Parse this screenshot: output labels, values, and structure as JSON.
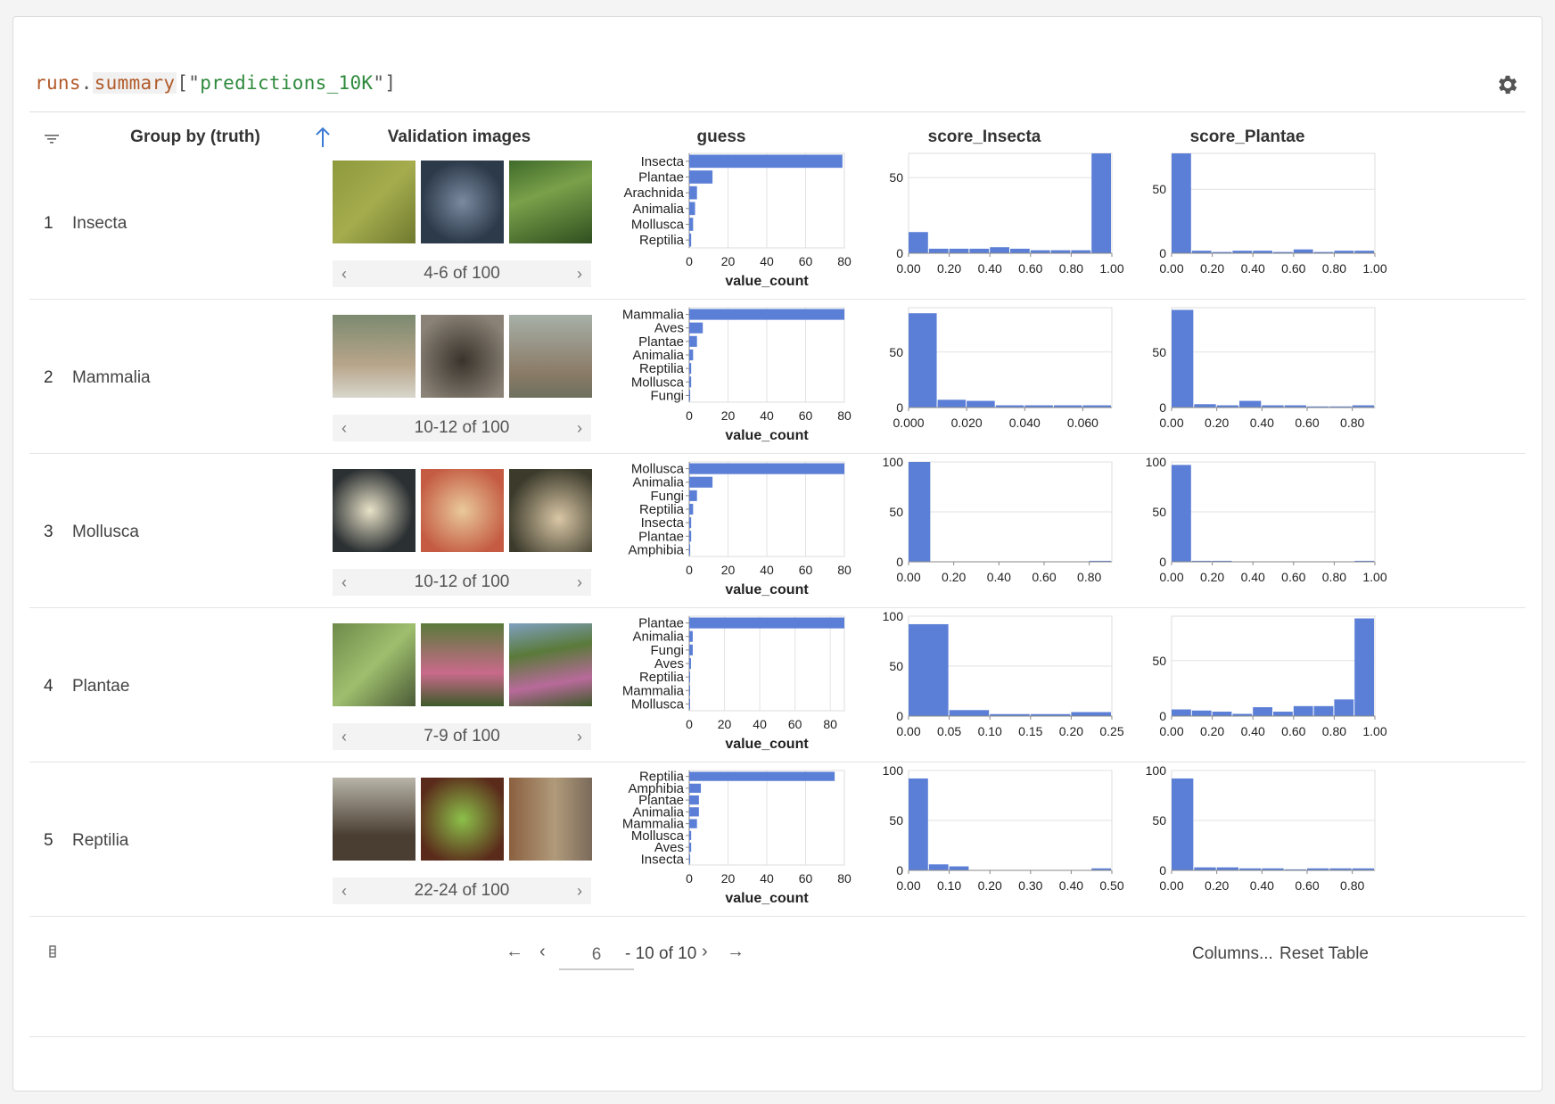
{
  "expression": {
    "obj": "runs",
    "dot": ".",
    "attr": "summary",
    "open": "[\"",
    "key": "predictions_10K",
    "close": "\"]"
  },
  "headers": {
    "group": "Group by (truth)",
    "images": "Validation images",
    "guess": "guess",
    "score_insecta": "score_Insecta",
    "score_plantae": "score_Plantae"
  },
  "rows": [
    {
      "index": "1",
      "name": "Insecta",
      "pager": "4-6 of 100"
    },
    {
      "index": "2",
      "name": "Mammalia",
      "pager": "10-12 of 100"
    },
    {
      "index": "3",
      "name": "Mollusca",
      "pager": "10-12 of 100"
    },
    {
      "index": "4",
      "name": "Plantae",
      "pager": "7-9 of 100"
    },
    {
      "index": "5",
      "name": "Reptilia",
      "pager": "22-24 of 100"
    }
  ],
  "footer": {
    "page_value": "6",
    "page_of": "- 10 of 10",
    "columns": "Columns...",
    "reset": "Reset Table"
  },
  "icons": [
    "gear-icon",
    "filter-icon",
    "sort-ascending-icon",
    "chevron-left-icon",
    "chevron-right-icon",
    "arrow-left-icon",
    "arrow-right-icon",
    "column-toggle-icon"
  ],
  "accent_color": "#5b7fd6",
  "chart_data": [
    {
      "row": "Insecta",
      "column": "guess",
      "type": "bar",
      "orientation": "horizontal",
      "categories": [
        "Insecta",
        "Plantae",
        "Arachnida",
        "Animalia",
        "Mollusca",
        "Reptilia"
      ],
      "values": [
        79,
        12,
        4,
        3,
        2,
        1
      ],
      "xlabel": "value_count",
      "xticks": [
        0,
        20,
        40,
        60,
        80
      ],
      "xlim": [
        0,
        80
      ]
    },
    {
      "row": "Insecta",
      "column": "score_Insecta",
      "type": "histogram",
      "bins": [
        0,
        0.1,
        0.2,
        0.3,
        0.4,
        0.5,
        0.6,
        0.7,
        0.8,
        0.9,
        1.0
      ],
      "values": [
        14,
        3,
        3,
        3,
        4,
        3,
        2,
        2,
        2,
        66
      ],
      "xticks": [
        "0.00",
        "0.20",
        "0.40",
        "0.60",
        "0.80",
        "1.00"
      ],
      "yticks": [
        0,
        50
      ],
      "ylim": [
        0,
        66
      ]
    },
    {
      "row": "Insecta",
      "column": "score_Plantae",
      "type": "histogram",
      "bins": [
        0,
        0.1,
        0.2,
        0.3,
        0.4,
        0.5,
        0.6,
        0.7,
        0.8,
        0.9,
        1.0
      ],
      "values": [
        78,
        2,
        1,
        2,
        2,
        1,
        3,
        1,
        2,
        2
      ],
      "xticks": [
        "0.00",
        "0.20",
        "0.40",
        "0.60",
        "0.80",
        "1.00"
      ],
      "yticks": [
        0,
        50
      ],
      "ylim": [
        0,
        78
      ]
    },
    {
      "row": "Mammalia",
      "column": "guess",
      "type": "bar",
      "orientation": "horizontal",
      "categories": [
        "Mammalia",
        "Aves",
        "Plantae",
        "Animalia",
        "Reptilia",
        "Mollusca",
        "Fungi"
      ],
      "values": [
        80,
        7,
        4,
        2,
        1,
        1,
        0.5
      ],
      "xlabel": "value_count",
      "xticks": [
        0,
        20,
        40,
        60,
        80
      ],
      "xlim": [
        0,
        80
      ]
    },
    {
      "row": "Mammalia",
      "column": "score_Insecta",
      "type": "histogram",
      "bins": [
        0,
        0.01,
        0.02,
        0.03,
        0.04,
        0.05,
        0.06,
        0.07
      ],
      "values": [
        85,
        7,
        6,
        2,
        2,
        2,
        2
      ],
      "xticks": [
        "0.000",
        "0.020",
        "0.040",
        "0.060"
      ],
      "yticks": [
        0,
        50
      ],
      "ylim": [
        0,
        90
      ]
    },
    {
      "row": "Mammalia",
      "column": "score_Plantae",
      "type": "histogram",
      "bins": [
        0,
        0.1,
        0.2,
        0.3,
        0.4,
        0.5,
        0.6,
        0.7,
        0.8,
        0.9
      ],
      "values": [
        88,
        3,
        2,
        6,
        2,
        2,
        1,
        1,
        2
      ],
      "xticks": [
        "0.00",
        "0.20",
        "0.40",
        "0.60",
        "0.80"
      ],
      "yticks": [
        0,
        50
      ],
      "ylim": [
        0,
        90
      ]
    },
    {
      "row": "Mollusca",
      "column": "guess",
      "type": "bar",
      "orientation": "horizontal",
      "categories": [
        "Mollusca",
        "Animalia",
        "Fungi",
        "Reptilia",
        "Insecta",
        "Plantae",
        "Amphibia"
      ],
      "values": [
        80,
        12,
        4,
        2,
        1,
        1,
        0.5
      ],
      "xlabel": "value_count",
      "xticks": [
        0,
        20,
        40,
        60,
        80
      ],
      "xlim": [
        0,
        80
      ]
    },
    {
      "row": "Mollusca",
      "column": "score_Insecta",
      "type": "histogram",
      "bins": [
        0,
        0.1,
        0.2,
        0.3,
        0.4,
        0.5,
        0.6,
        0.7,
        0.8,
        0.9
      ],
      "values": [
        100,
        0,
        0,
        0,
        0,
        0,
        0,
        0,
        1
      ],
      "xticks": [
        "0.00",
        "0.20",
        "0.40",
        "0.60",
        "0.80"
      ],
      "yticks": [
        0,
        50,
        100
      ],
      "ylim": [
        0,
        100
      ]
    },
    {
      "row": "Mollusca",
      "column": "score_Plantae",
      "type": "histogram",
      "bins": [
        0,
        0.1,
        0.2,
        0.3,
        0.4,
        0.5,
        0.6,
        0.7,
        0.8,
        0.9,
        1.0
      ],
      "values": [
        97,
        1,
        1,
        0,
        0,
        0,
        0,
        0,
        0,
        1
      ],
      "xticks": [
        "0.00",
        "0.20",
        "0.40",
        "0.60",
        "0.80",
        "1.00"
      ],
      "yticks": [
        0,
        50,
        100
      ],
      "ylim": [
        0,
        100
      ]
    },
    {
      "row": "Plantae",
      "column": "guess",
      "type": "bar",
      "orientation": "horizontal",
      "categories": [
        "Plantae",
        "Animalia",
        "Fungi",
        "Aves",
        "Reptilia",
        "Mammalia",
        "Mollusca"
      ],
      "values": [
        88,
        2,
        2,
        1,
        0.5,
        0.5,
        0.5
      ],
      "xlabel": "value_count",
      "xticks": [
        0,
        20,
        40,
        60,
        80
      ],
      "xlim": [
        0,
        88
      ]
    },
    {
      "row": "Plantae",
      "column": "score_Insecta",
      "type": "histogram",
      "bins": [
        0,
        0.05,
        0.1,
        0.15,
        0.2,
        0.25
      ],
      "values": [
        92,
        6,
        2,
        2,
        4
      ],
      "xticks": [
        "0.00",
        "0.05",
        "0.10",
        "0.15",
        "0.20",
        "0.25"
      ],
      "yticks": [
        0,
        50,
        100
      ],
      "ylim": [
        0,
        100
      ]
    },
    {
      "row": "Plantae",
      "column": "score_Plantae",
      "type": "histogram",
      "bins": [
        0,
        0.1,
        0.2,
        0.3,
        0.4,
        0.5,
        0.6,
        0.7,
        0.8,
        0.9,
        1.0
      ],
      "values": [
        6,
        5,
        4,
        2,
        8,
        4,
        9,
        9,
        15,
        88
      ],
      "xticks": [
        "0.00",
        "0.20",
        "0.40",
        "0.60",
        "0.80",
        "1.00"
      ],
      "yticks": [
        0,
        50
      ],
      "ylim": [
        0,
        90
      ]
    },
    {
      "row": "Reptilia",
      "column": "guess",
      "type": "bar",
      "orientation": "horizontal",
      "categories": [
        "Reptilia",
        "Amphibia",
        "Plantae",
        "Animalia",
        "Mammalia",
        "Mollusca",
        "Aves",
        "Insecta"
      ],
      "values": [
        75,
        6,
        5,
        5,
        4,
        1,
        1,
        0.5
      ],
      "xlabel": "value_count",
      "xticks": [
        0,
        20,
        40,
        60,
        80
      ],
      "xlim": [
        0,
        80
      ]
    },
    {
      "row": "Reptilia",
      "column": "score_Insecta",
      "type": "histogram",
      "bins": [
        0,
        0.05,
        0.1,
        0.15,
        0.2,
        0.25,
        0.3,
        0.35,
        0.4,
        0.45,
        0.5
      ],
      "values": [
        92,
        6,
        4,
        0,
        0,
        0,
        0,
        0,
        0,
        2
      ],
      "xticks": [
        "0.00",
        "0.10",
        "0.20",
        "0.30",
        "0.40",
        "0.50"
      ],
      "yticks": [
        0,
        50,
        100
      ],
      "ylim": [
        0,
        100
      ]
    },
    {
      "row": "Reptilia",
      "column": "score_Plantae",
      "type": "histogram",
      "bins": [
        0,
        0.1,
        0.2,
        0.3,
        0.4,
        0.5,
        0.6,
        0.7,
        0.8,
        0.9
      ],
      "values": [
        92,
        3,
        3,
        2,
        2,
        1,
        2,
        2,
        2
      ],
      "xticks": [
        "0.00",
        "0.20",
        "0.40",
        "0.60",
        "0.80"
      ],
      "yticks": [
        0,
        50,
        100
      ],
      "ylim": [
        0,
        100
      ]
    }
  ]
}
